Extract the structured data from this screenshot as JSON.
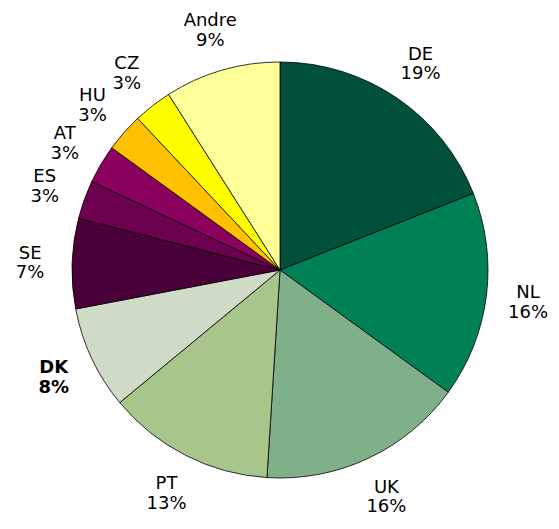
{
  "chart_data": {
    "type": "pie",
    "categories": [
      "DE",
      "NL",
      "UK",
      "PT",
      "DK",
      "SE",
      "ES",
      "AT",
      "HU",
      "CZ",
      "Andre"
    ],
    "values": [
      19,
      16,
      16,
      13,
      8,
      7,
      3,
      3,
      3,
      3,
      9
    ],
    "value_labels": [
      "19%",
      "16%",
      "16%",
      "13%",
      "8%",
      "7%",
      "3%",
      "3%",
      "3%",
      "3%",
      "9%"
    ],
    "colors": [
      "#00503c",
      "#008055",
      "#80b08a",
      "#a8c68c",
      "#d0dbc8",
      "#4a0038",
      "#6e0050",
      "#8c0060",
      "#ffc000",
      "#ffff00",
      "#ffff99"
    ]
  }
}
